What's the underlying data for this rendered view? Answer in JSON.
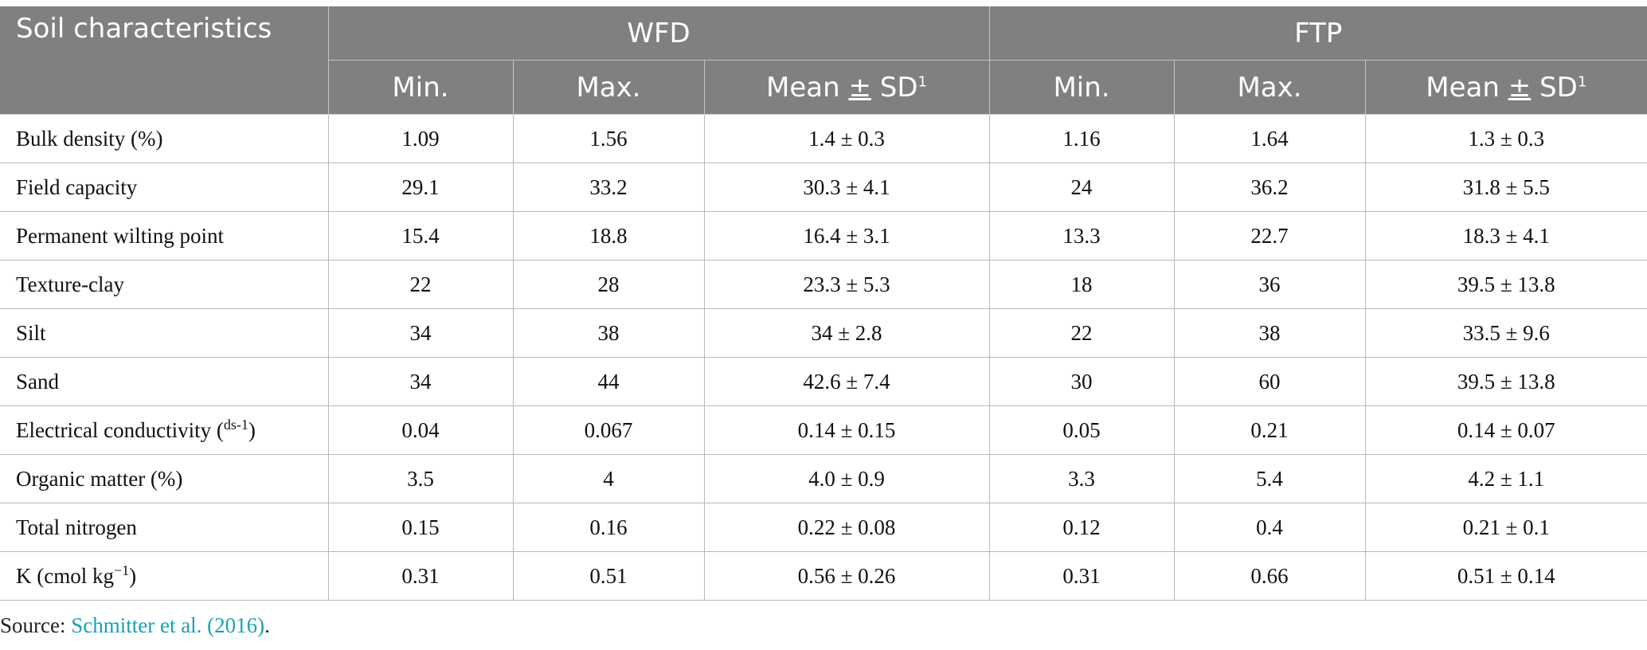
{
  "header": {
    "corner": "Soil characteristics",
    "groups": [
      "WFD",
      "FTP"
    ],
    "sub": [
      "Min.",
      "Max.",
      "Mean",
      "SD",
      "1"
    ]
  },
  "rows": [
    {
      "label": "Bulk density (%)",
      "v": [
        "1.09",
        "1.56",
        "1.4 ± 0.3",
        "1.16",
        "1.64",
        "1.3 ± 0.3"
      ]
    },
    {
      "label": "Field capacity",
      "v": [
        "29.1",
        "33.2",
        "30.3 ± 4.1",
        "24",
        "36.2",
        "31.8 ± 5.5"
      ]
    },
    {
      "label": "Permanent wilting point",
      "v": [
        "15.4",
        "18.8",
        "16.4 ± 3.1",
        "13.3",
        "22.7",
        "18.3 ± 4.1"
      ]
    },
    {
      "label": "Texture-clay",
      "v": [
        "22",
        "28",
        "23.3 ± 5.3",
        "18",
        "36",
        "39.5 ± 13.8"
      ]
    },
    {
      "label": "Silt",
      "v": [
        "34",
        "38",
        "34 ± 2.8",
        "22",
        "38",
        "33.5 ± 9.6"
      ]
    },
    {
      "label": "Sand",
      "v": [
        "34",
        "44",
        "42.6 ± 7.4",
        "30",
        "60",
        "39.5 ± 13.8"
      ]
    },
    {
      "label": "Electrical conductivity (",
      "sup": "ds-1",
      "tail": ")",
      "v": [
        "0.04",
        "0.067",
        "0.14 ± 0.15",
        "0.05",
        "0.21",
        "0.14 ± 0.07"
      ]
    },
    {
      "label": "Organic matter (%)",
      "v": [
        "3.5",
        "4",
        "4.0 ± 0.9",
        "3.3",
        "5.4",
        "4.2 ± 1.1"
      ]
    },
    {
      "label": "Total nitrogen",
      "v": [
        "0.15",
        "0.16",
        "0.22 ± 0.08",
        "0.12",
        "0.4",
        "0.21 ± 0.1"
      ]
    },
    {
      "label": "K (cmol kg",
      "sup": "−1",
      "tail": ")",
      "v": [
        "0.31",
        "0.51",
        "0.56 ± 0.26",
        "0.31",
        "0.66",
        "0.51 ± 0.14"
      ]
    }
  ],
  "source": {
    "prefix": "Source: ",
    "link": "Schmitter et al. (2016)",
    "suffix": "."
  }
}
